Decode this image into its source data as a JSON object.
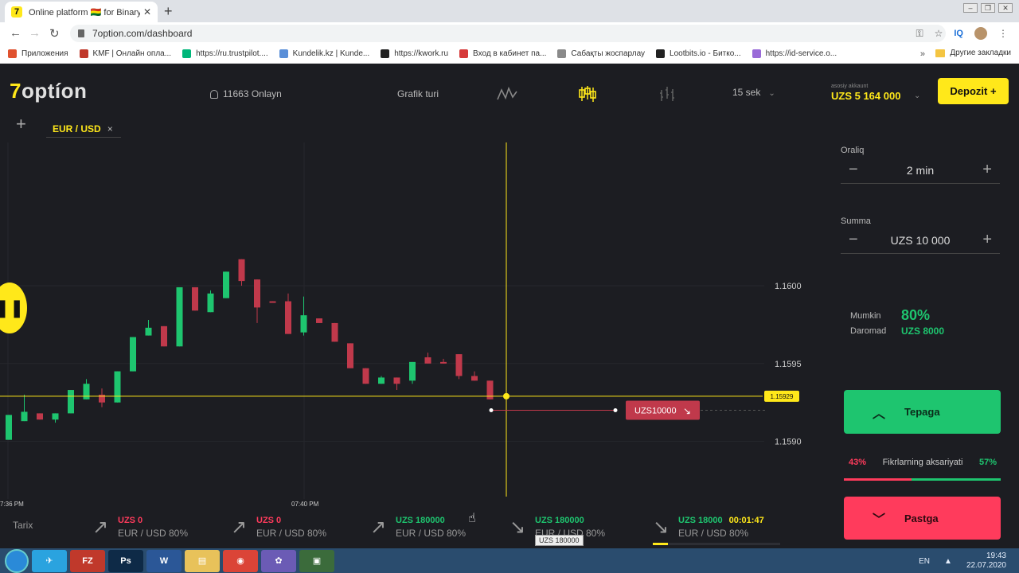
{
  "browser": {
    "tab_title": "Online platform 🇧🇴 for Binary Op",
    "favicon": "7",
    "url": "7option.com/dashboard",
    "bookmarks": [
      {
        "label": "Приложения",
        "color": "#e0522f"
      },
      {
        "label": "KMF | Онлайн опла...",
        "color": "#c0392b"
      },
      {
        "label": "https://ru.trustpilot....",
        "color": "#00b67a"
      },
      {
        "label": "Kundelik.kz | Kunde...",
        "color": "#5a8fd8"
      },
      {
        "label": "https://kwork.ru",
        "color": "#222222"
      },
      {
        "label": "Вход в кабинет па...",
        "color": "#d63a3a"
      },
      {
        "label": "Сабақты жоспарлау",
        "color": "#8a8a8a"
      },
      {
        "label": "Lootbits.io - Битко...",
        "color": "#222222"
      },
      {
        "label": "https://id-service.o...",
        "color": "#9a6bd8"
      }
    ],
    "bookmarks_more": "»",
    "other_bookmarks": "Другие закладки"
  },
  "header": {
    "logo_seven": "7",
    "logo_rest": "optíon",
    "online": "11663 Onlayn",
    "chart_type_label": "Grafik turi",
    "timeframe": "15 sek",
    "account_caption": "asosiy akkaunt",
    "account_balance": "UZS 5 164 000",
    "deposit_label": "Depozit +"
  },
  "tabs": {
    "add": "+",
    "active_pair": "EUR / USD",
    "close": "×"
  },
  "chart_data": {
    "type": "candlestick",
    "price_ticks": [
      "1.1600",
      "1.1595",
      "1.1590"
    ],
    "price_tick_values": [
      1.16,
      1.1595,
      1.159
    ],
    "time_ticks": [
      "7:36 PM",
      "07:40 PM"
    ],
    "current_price": "1.15929",
    "current_price_value": 1.15929,
    "ylim": [
      1.15863,
      1.16092
    ],
    "grid": true,
    "up_color": "#1ec56f",
    "down_color": "#c0394b",
    "candles": [
      {
        "o": 1.15901,
        "c": 1.15917,
        "h": 1.15917,
        "l": 1.15901
      },
      {
        "o": 1.15913,
        "c": 1.15919,
        "h": 1.1593,
        "l": 1.15913
      },
      {
        "o": 1.15918,
        "c": 1.15914,
        "h": 1.15918,
        "l": 1.15914
      },
      {
        "o": 1.15914,
        "c": 1.15918,
        "h": 1.15918,
        "l": 1.15912
      },
      {
        "o": 1.15918,
        "c": 1.15933,
        "h": 1.15933,
        "l": 1.15918
      },
      {
        "o": 1.15927,
        "c": 1.15937,
        "h": 1.1594,
        "l": 1.15927
      },
      {
        "o": 1.1593,
        "c": 1.15925,
        "h": 1.15934,
        "l": 1.15922
      },
      {
        "o": 1.15925,
        "c": 1.15945,
        "h": 1.15945,
        "l": 1.15925
      },
      {
        "o": 1.15945,
        "c": 1.15967,
        "h": 1.15967,
        "l": 1.15945
      },
      {
        "o": 1.15968,
        "c": 1.15973,
        "h": 1.15978,
        "l": 1.15968
      },
      {
        "o": 1.15974,
        "c": 1.15961,
        "h": 1.15974,
        "l": 1.15961
      },
      {
        "o": 1.15961,
        "c": 1.15999,
        "h": 1.15999,
        "l": 1.15961
      },
      {
        "o": 1.15999,
        "c": 1.15984,
        "h": 1.15999,
        "l": 1.15984
      },
      {
        "o": 1.15983,
        "c": 1.15995,
        "h": 1.15997,
        "l": 1.15983
      },
      {
        "o": 1.15992,
        "c": 1.16009,
        "h": 1.16009,
        "l": 1.15992
      },
      {
        "o": 1.16017,
        "c": 1.16003,
        "h": 1.16017,
        "l": 1.16
      },
      {
        "o": 1.16004,
        "c": 1.15986,
        "h": 1.16004,
        "l": 1.15976
      },
      {
        "o": 1.1599,
        "c": 1.15989,
        "h": 1.1599,
        "l": 1.15989
      },
      {
        "o": 1.1599,
        "c": 1.15969,
        "h": 1.15995,
        "l": 1.15969
      },
      {
        "o": 1.1597,
        "c": 1.15981,
        "h": 1.15993,
        "l": 1.15968
      },
      {
        "o": 1.15979,
        "c": 1.15976,
        "h": 1.15979,
        "l": 1.15976
      },
      {
        "o": 1.15976,
        "c": 1.15964,
        "h": 1.15976,
        "l": 1.15964
      },
      {
        "o": 1.15963,
        "c": 1.15947,
        "h": 1.15963,
        "l": 1.15947
      },
      {
        "o": 1.15947,
        "c": 1.15937,
        "h": 1.15947,
        "l": 1.15937
      },
      {
        "o": 1.15937,
        "c": 1.15941,
        "h": 1.15942,
        "l": 1.15937
      },
      {
        "o": 1.15941,
        "c": 1.15937,
        "h": 1.15941,
        "l": 1.15933
      },
      {
        "o": 1.15939,
        "c": 1.15951,
        "h": 1.15951,
        "l": 1.15937
      },
      {
        "o": 1.15954,
        "c": 1.1595,
        "h": 1.15957,
        "l": 1.1595
      },
      {
        "o": 1.15951,
        "c": 1.1595,
        "h": 1.15953,
        "l": 1.1595
      },
      {
        "o": 1.15956,
        "c": 1.15942,
        "h": 1.15956,
        "l": 1.1594
      },
      {
        "o": 1.15942,
        "c": 1.15939,
        "h": 1.15945,
        "l": 1.15939
      },
      {
        "o": 1.15939,
        "c": 1.15927,
        "h": 1.15939,
        "l": 1.15927
      }
    ],
    "active_trade": {
      "label": "UZS10000",
      "direction": "down",
      "level": 1.1592
    }
  },
  "sidebar": {
    "interval_label": "Oraliq",
    "interval_value": "2 min",
    "amount_label": "Summa",
    "amount_value": "UZS 10 000",
    "minus": "−",
    "plus": "+",
    "profit_label_1": "Mumkin",
    "profit_label_2": "Daromad",
    "profit_pct": "80%",
    "profit_amount": "UZS 8000",
    "up_label": "Tepaga",
    "down_label": "Pastga",
    "sentiment_down": "43%",
    "sentiment_label": "Fikrlarning aksariyati",
    "sentiment_up": "57%",
    "sentiment_down_fraction": 0.43
  },
  "history": {
    "label": "Tarix",
    "trades": [
      {
        "amount": "UZS 0",
        "pair": "EUR / USD  80%",
        "dir": "up",
        "color": "#ff3b5c"
      },
      {
        "amount": "UZS 0",
        "pair": "EUR / USD  80%",
        "dir": "up",
        "color": "#ff3b5c"
      },
      {
        "amount": "UZS 180000",
        "pair": "EUR / USD  80%",
        "dir": "up",
        "color": "#1ec56f"
      },
      {
        "amount": "UZS 180000",
        "pair": "EUR / USD  80%",
        "dir": "down",
        "color": "#1ec56f"
      },
      {
        "amount": "UZS 18000",
        "pair": "EUR / USD  80%",
        "dir": "down",
        "color": "#1ec56f",
        "timer": "00:01:47",
        "progress": 0.12
      }
    ],
    "tooltip": "UZS 180000"
  },
  "taskbar": {
    "apps": [
      {
        "name": "telegram",
        "color": "#2aa3df",
        "glyph": "✈"
      },
      {
        "name": "filezilla",
        "color": "#c0392b",
        "glyph": "FZ"
      },
      {
        "name": "photoshop",
        "color": "#0e2a47",
        "glyph": "Ps"
      },
      {
        "name": "word",
        "color": "#2b5797",
        "glyph": "W"
      },
      {
        "name": "explorer",
        "color": "#e8c25a",
        "glyph": "▤"
      },
      {
        "name": "chrome",
        "color": "#db4437",
        "glyph": "◉"
      },
      {
        "name": "picasa",
        "color": "#6b5bb5",
        "glyph": "✿"
      },
      {
        "name": "media",
        "color": "#3b6b3b",
        "glyph": "▣"
      }
    ],
    "lang": "EN",
    "time": "19:43",
    "date": "22.07.2020"
  }
}
